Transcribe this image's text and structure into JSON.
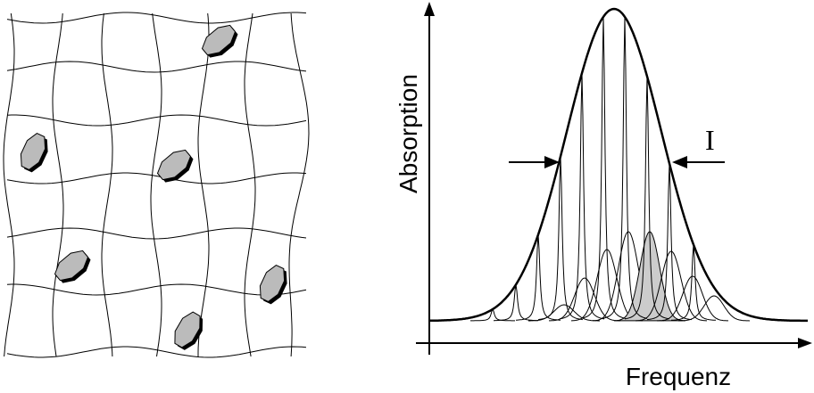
{
  "axes": {
    "y_label": "Absorption",
    "x_label": "Frequenz"
  },
  "annotation": "I"
}
